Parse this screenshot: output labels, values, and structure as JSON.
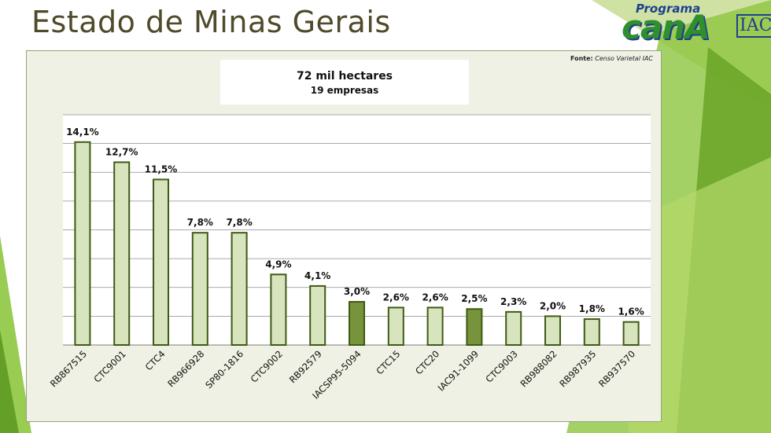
{
  "slide": {
    "title": "Estado de Minas Gerais"
  },
  "logo": {
    "top_text": "Programa",
    "main_text": "canA",
    "badge": "IAC"
  },
  "source_note": {
    "label": "Fonte:",
    "text": "Censo Varietal IAC"
  },
  "info_box": {
    "line1": "72 mil hectares",
    "line2": "19 empresas"
  },
  "colors": {
    "bar_light": "#d7e4bd",
    "bar_dark": "#77933c",
    "bar_stroke": "#3f5a15",
    "panel_bg": "#eef1e3",
    "gridline": "#8c8c8c",
    "accent_green": "#8dc63f"
  },
  "chart_data": {
    "type": "bar",
    "categories": [
      "RB867515",
      "CTC9001",
      "CTC4",
      "RB966928",
      "SP80-1816",
      "CTC9002",
      "RB92579",
      "IACSP95-5094",
      "CTC15",
      "CTC20",
      "IAC91-1099",
      "CTC9003",
      "RB988082",
      "RB987935",
      "RB937570"
    ],
    "values": [
      14.1,
      12.7,
      11.5,
      7.8,
      7.8,
      4.9,
      4.1,
      3.0,
      2.6,
      2.6,
      2.5,
      2.3,
      2.0,
      1.8,
      1.6
    ],
    "data_labels": [
      "14,1%",
      "12,7%",
      "11,5%",
      "7,8%",
      "7,8%",
      "4,9%",
      "4,1%",
      "3,0%",
      "2,6%",
      "2,6%",
      "2,5%",
      "2,3%",
      "2,0%",
      "1,8%",
      "1,6%"
    ],
    "highlighted": [
      "IACSP95-5094",
      "IAC91-1099"
    ],
    "ylim": [
      0,
      16
    ],
    "y_gridlines": [
      0,
      2,
      4,
      6,
      8,
      10,
      12,
      14,
      16
    ],
    "y_tick_labels_shown": false,
    "grid": true,
    "legend": "none",
    "title": "",
    "xlabel": "",
    "ylabel": ""
  }
}
